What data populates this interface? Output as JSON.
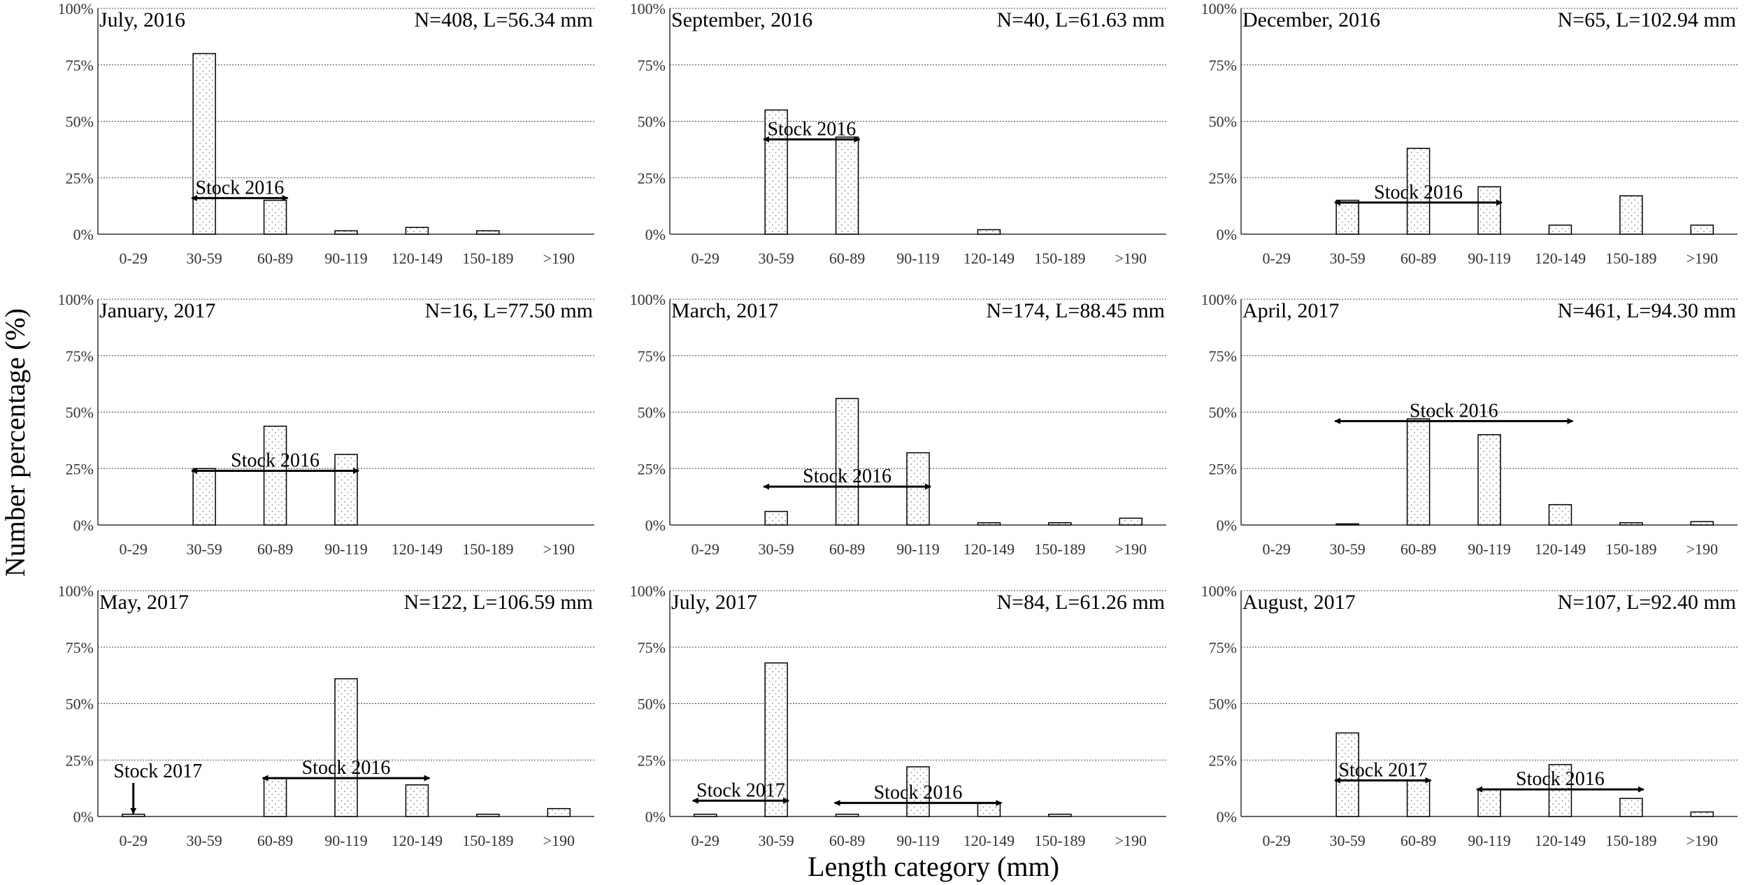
{
  "figure": {
    "ylabel": "Number percentage (%)",
    "xlabel": "Length category (mm)"
  },
  "chart_data": [
    {
      "type": "bar",
      "title": "July, 2016",
      "stats": "N=408, L=56.34 mm",
      "categories": [
        "0-29",
        "30-59",
        "60-89",
        "90-119",
        "120-149",
        "150-189",
        ">190"
      ],
      "values": [
        0,
        80,
        15,
        1.5,
        3,
        1.5,
        0
      ],
      "yticks": [
        "0%",
        "25%",
        "50%",
        "75%",
        "100%"
      ],
      "ylim": [
        0,
        100
      ],
      "annotations": [
        {
          "type": "range",
          "label": "Stock 2016",
          "from": 1,
          "to": 2,
          "y": 16
        }
      ]
    },
    {
      "type": "bar",
      "title": "September, 2016",
      "stats": "N=40, L=61.63 mm",
      "categories": [
        "0-29",
        "30-59",
        "60-89",
        "90-119",
        "120-149",
        "150-189",
        ">190"
      ],
      "values": [
        0,
        55,
        43,
        0,
        2,
        0,
        0
      ],
      "yticks": [
        "0%",
        "25%",
        "50%",
        "75%",
        "100%"
      ],
      "ylim": [
        0,
        100
      ],
      "annotations": [
        {
          "type": "range",
          "label": "Stock 2016",
          "from": 1,
          "to": 2,
          "y": 42
        }
      ]
    },
    {
      "type": "bar",
      "title": "December, 2016",
      "stats": "N=65, L=102.94 mm",
      "categories": [
        "0-29",
        "30-59",
        "60-89",
        "90-119",
        "120-149",
        "150-189",
        ">190"
      ],
      "values": [
        0,
        15,
        38,
        21,
        4,
        17,
        4
      ],
      "yticks": [
        "0%",
        "25%",
        "50%",
        "75%",
        "100%"
      ],
      "ylim": [
        0,
        100
      ],
      "annotations": [
        {
          "type": "range",
          "label": "Stock 2016",
          "from": 1,
          "to": 3,
          "y": 14
        }
      ]
    },
    {
      "type": "bar",
      "title": "January, 2017",
      "stats": "N=16, L=77.50 mm",
      "categories": [
        "0-29",
        "30-59",
        "60-89",
        "90-119",
        "120-149",
        "150-189",
        ">190"
      ],
      "values": [
        0,
        25,
        43.75,
        31.25,
        0,
        0,
        0
      ],
      "yticks": [
        "0%",
        "25%",
        "50%",
        "75%",
        "100%"
      ],
      "ylim": [
        0,
        100
      ],
      "annotations": [
        {
          "type": "range",
          "label": "Stock 2016",
          "from": 1,
          "to": 3,
          "y": 24
        }
      ]
    },
    {
      "type": "bar",
      "title": "March, 2017",
      "stats": "N=174, L=88.45 mm",
      "categories": [
        "0-29",
        "30-59",
        "60-89",
        "90-119",
        "120-149",
        "150-189",
        ">190"
      ],
      "values": [
        0,
        6,
        56,
        32,
        1,
        1,
        3
      ],
      "yticks": [
        "0%",
        "25%",
        "50%",
        "75%",
        "100%"
      ],
      "ylim": [
        0,
        100
      ],
      "annotations": [
        {
          "type": "range",
          "label": "Stock 2016",
          "from": 1,
          "to": 3,
          "y": 17
        }
      ]
    },
    {
      "type": "bar",
      "title": "April, 2017",
      "stats": "N=461, L=94.30 mm",
      "categories": [
        "0-29",
        "30-59",
        "60-89",
        "90-119",
        "120-149",
        "150-189",
        ">190"
      ],
      "values": [
        0,
        0.5,
        47,
        40,
        9,
        1,
        1.5
      ],
      "yticks": [
        "0%",
        "25%",
        "50%",
        "75%",
        "100%"
      ],
      "ylim": [
        0,
        100
      ],
      "annotations": [
        {
          "type": "range",
          "label": "Stock 2016",
          "from": 1,
          "to": 4,
          "y": 46
        }
      ]
    },
    {
      "type": "bar",
      "title": "May, 2017",
      "stats": "N=122, L=106.59 mm",
      "categories": [
        "0-29",
        "30-59",
        "60-89",
        "90-119",
        "120-149",
        "150-189",
        ">190"
      ],
      "values": [
        1,
        0,
        17,
        61,
        14,
        1,
        3.5
      ],
      "yticks": [
        "0%",
        "25%",
        "50%",
        "75%",
        "100%"
      ],
      "ylim": [
        0,
        100
      ],
      "annotations": [
        {
          "type": "range",
          "label": "Stock 2016",
          "from": 2,
          "to": 4,
          "y": 17
        },
        {
          "type": "pointer",
          "label": "Stock 2017",
          "at": 0
        }
      ]
    },
    {
      "type": "bar",
      "title": "July, 2017",
      "stats": "N=84, L=61.26 mm",
      "categories": [
        "0-29",
        "30-59",
        "60-89",
        "90-119",
        "120-149",
        "150-189",
        ">190"
      ],
      "values": [
        1,
        68,
        1,
        22,
        6,
        1,
        0
      ],
      "yticks": [
        "0%",
        "25%",
        "50%",
        "75%",
        "100%"
      ],
      "ylim": [
        0,
        100
      ],
      "annotations": [
        {
          "type": "range",
          "label": "Stock 2017",
          "from": 0,
          "to": 1,
          "y": 7
        },
        {
          "type": "range",
          "label": "Stock 2016",
          "from": 2,
          "to": 4,
          "y": 6
        }
      ]
    },
    {
      "type": "bar",
      "title": "August, 2017",
      "stats": "N=107, L=92.40 mm",
      "categories": [
        "0-29",
        "30-59",
        "60-89",
        "90-119",
        "120-149",
        "150-189",
        ">190"
      ],
      "values": [
        0,
        37,
        16,
        12,
        23,
        8,
        2
      ],
      "yticks": [
        "0%",
        "25%",
        "50%",
        "75%",
        "100%"
      ],
      "ylim": [
        0,
        100
      ],
      "annotations": [
        {
          "type": "range",
          "label": "Stock 2017",
          "from": 1,
          "to": 2,
          "y": 16
        },
        {
          "type": "range",
          "label": "Stock 2016",
          "from": 3,
          "to": 5,
          "y": 12
        }
      ]
    }
  ]
}
